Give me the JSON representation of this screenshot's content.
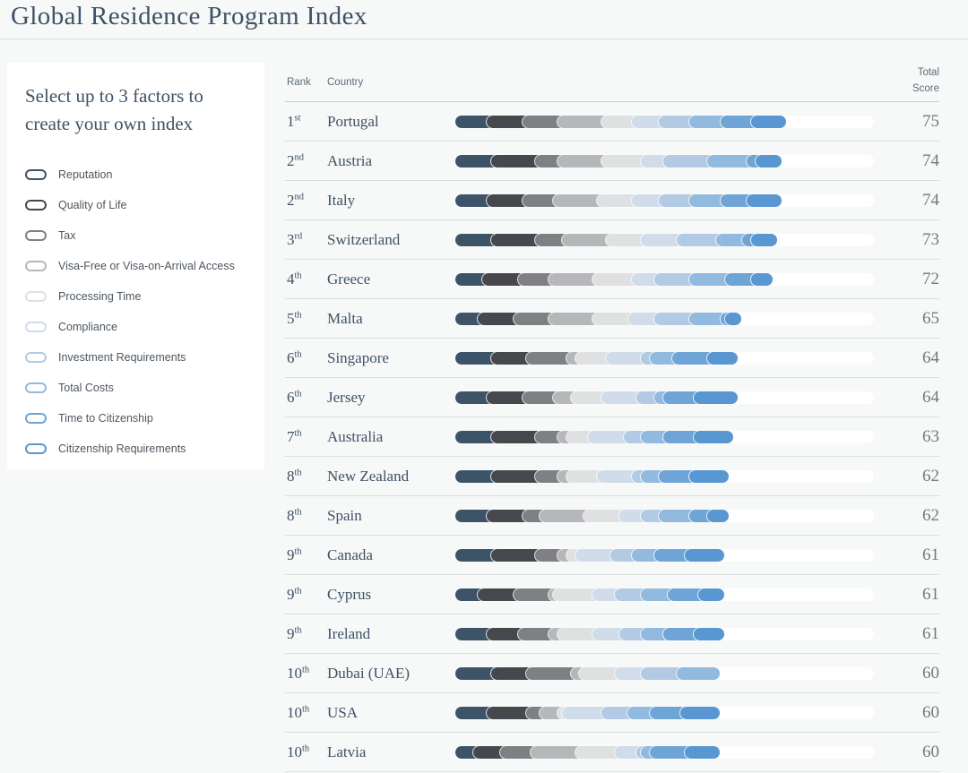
{
  "page": {
    "title": "Global Residence Program Index"
  },
  "sidebar": {
    "heading": "Select up to 3 factors to create your own index",
    "factors": [
      {
        "label": "Reputation",
        "color": "#3d5468"
      },
      {
        "label": "Quality of Life",
        "color": "#46484d"
      },
      {
        "label": "Tax",
        "color": "#7e8084"
      },
      {
        "label": "Visa-Free or Visa-on-Arrival Access",
        "color": "#b5b7ba"
      },
      {
        "label": "Processing Time",
        "color": "#dfe0e2"
      },
      {
        "label": "Compliance",
        "color": "#d0dcea"
      },
      {
        "label": "Investment Requirements",
        "color": "#b2cae3"
      },
      {
        "label": "Total Costs",
        "color": "#92bade"
      },
      {
        "label": "Time to Citizenship",
        "color": "#6fa5d6"
      },
      {
        "label": "Citizenship Requirements",
        "color": "#5897d2"
      }
    ]
  },
  "table": {
    "headers": {
      "rank": "Rank",
      "country": "Country",
      "score_line1": "Total",
      "score_line2": "Score"
    },
    "rows": [
      {
        "rank": "1",
        "ordinal": "st",
        "country": "Portugal",
        "score": 75
      },
      {
        "rank": "2",
        "ordinal": "nd",
        "country": "Austria",
        "score": 74
      },
      {
        "rank": "2",
        "ordinal": "nd",
        "country": "Italy",
        "score": 74
      },
      {
        "rank": "3",
        "ordinal": "rd",
        "country": "Switzerland",
        "score": 73
      },
      {
        "rank": "4",
        "ordinal": "th",
        "country": "Greece",
        "score": 72
      },
      {
        "rank": "5",
        "ordinal": "th",
        "country": "Malta",
        "score": 65
      },
      {
        "rank": "6",
        "ordinal": "th",
        "country": "Singapore",
        "score": 64
      },
      {
        "rank": "6",
        "ordinal": "th",
        "country": "Jersey",
        "score": 64
      },
      {
        "rank": "7",
        "ordinal": "th",
        "country": "Australia",
        "score": 63
      },
      {
        "rank": "8",
        "ordinal": "th",
        "country": "New Zealand",
        "score": 62
      },
      {
        "rank": "8",
        "ordinal": "th",
        "country": "Spain",
        "score": 62
      },
      {
        "rank": "9",
        "ordinal": "th",
        "country": "Canada",
        "score": 61
      },
      {
        "rank": "9",
        "ordinal": "th",
        "country": "Cyprus",
        "score": 61
      },
      {
        "rank": "9",
        "ordinal": "th",
        "country": "Ireland",
        "score": 61
      },
      {
        "rank": "10",
        "ordinal": "th",
        "country": "Dubai (UAE)",
        "score": 60
      },
      {
        "rank": "10",
        "ordinal": "th",
        "country": "USA",
        "score": 60
      },
      {
        "rank": "10",
        "ordinal": "th",
        "country": "Latvia",
        "score": 60
      }
    ]
  },
  "chart_data": {
    "type": "bar",
    "orientation": "horizontal-stacked",
    "title": "Global Residence Program Index",
    "categories": [
      "Portugal",
      "Austria",
      "Italy",
      "Switzerland",
      "Greece",
      "Malta",
      "Singapore",
      "Jersey",
      "Australia",
      "New Zealand",
      "Spain",
      "Canada",
      "Cyprus",
      "Ireland",
      "Dubai (UAE)",
      "USA",
      "Latvia"
    ],
    "totals": [
      75,
      74,
      74,
      73,
      72,
      65,
      64,
      64,
      63,
      62,
      62,
      61,
      61,
      61,
      60,
      60,
      60
    ],
    "xlim": [
      0,
      95
    ],
    "legend_position": "left-sidebar",
    "series": [
      {
        "name": "Reputation",
        "color": "#3d5468",
        "values": [
          9,
          10,
          9,
          10,
          8,
          7,
          10,
          9,
          10,
          10,
          9,
          10,
          7,
          9,
          10,
          9,
          6
        ]
      },
      {
        "name": "Quality of Life",
        "color": "#46484d",
        "values": [
          8,
          10,
          8,
          10,
          8,
          8,
          8,
          8,
          10,
          10,
          8,
          10,
          8,
          7,
          8,
          9,
          6
        ]
      },
      {
        "name": "Tax",
        "color": "#7e8084",
        "values": [
          8,
          5,
          7,
          6,
          7,
          8,
          9,
          7,
          5,
          5,
          4,
          5,
          8,
          7,
          10,
          3,
          7
        ]
      },
      {
        "name": "Visa-Free or Visa-on-Arrival Access",
        "color": "#b5b7ba",
        "values": [
          10,
          10,
          10,
          10,
          10,
          10,
          2,
          4,
          2,
          2,
          10,
          2,
          1,
          2,
          2,
          4,
          10
        ]
      },
      {
        "name": "Processing Time",
        "color": "#dfe0e2",
        "values": [
          7,
          9,
          8,
          8,
          9,
          8,
          7,
          7,
          5,
          7,
          8,
          2,
          9,
          8,
          8,
          1,
          9
        ]
      },
      {
        "name": "Compliance",
        "color": "#d0dcea",
        "values": [
          6,
          5,
          6,
          8,
          5,
          6,
          8,
          8,
          8,
          8,
          5,
          8,
          5,
          6,
          6,
          9,
          5
        ]
      },
      {
        "name": "Investment Requirements",
        "color": "#b2cae3",
        "values": [
          7,
          10,
          7,
          9,
          8,
          8,
          2,
          4,
          4,
          2,
          4,
          5,
          6,
          5,
          8,
          6,
          1
        ]
      },
      {
        "name": "Total Costs",
        "color": "#92bade",
        "values": [
          7,
          9,
          7,
          6,
          8,
          7,
          5,
          2,
          5,
          4,
          7,
          5,
          6,
          5,
          8,
          5,
          2
        ]
      },
      {
        "name": "Time to Citizenship",
        "color": "#6fa5d6",
        "values": [
          7,
          2,
          6,
          2,
          6,
          1,
          8,
          7,
          7,
          7,
          4,
          7,
          7,
          7,
          0,
          7,
          8
        ]
      },
      {
        "name": "Citizenship Requirements",
        "color": "#5897d2",
        "values": [
          6,
          4,
          6,
          4,
          3,
          2,
          5,
          8,
          7,
          7,
          3,
          7,
          4,
          5,
          0,
          7,
          6
        ]
      }
    ]
  }
}
